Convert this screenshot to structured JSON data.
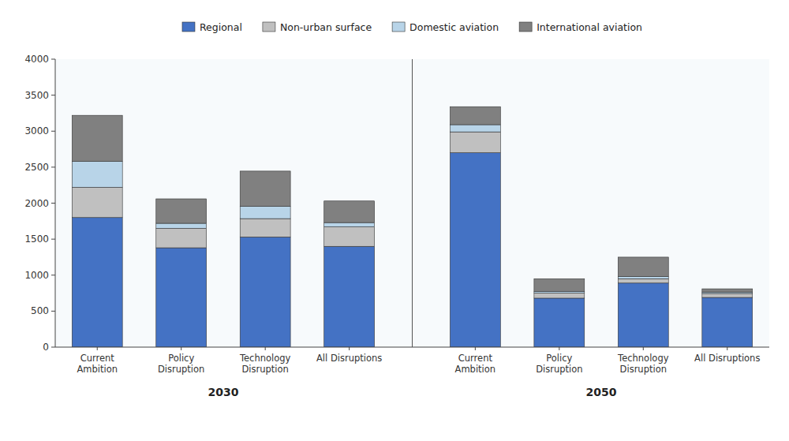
{
  "chart_data": {
    "type": "bar",
    "stacked": true,
    "grid": false,
    "legend": "top",
    "categories": [
      "Current\nAmbition",
      "Policy\nDisruption",
      "Technology\nDisruption",
      "All Disruptions",
      "Current\nAmbition",
      "Policy\nDisruption",
      "Technology\nDisruption",
      "All Disruptions"
    ],
    "groups": [
      "2030",
      "2050"
    ],
    "series": [
      {
        "name": "Regional",
        "color": "#4472C4",
        "values": [
          1800,
          1380,
          1530,
          1400,
          2700,
          680,
          890,
          690
        ]
      },
      {
        "name": "Non-urban surface",
        "color": "#C0C0C0",
        "values": [
          420,
          270,
          255,
          270,
          290,
          70,
          60,
          55
        ]
      },
      {
        "name": "Domestic aviation",
        "color": "#B8D4E8",
        "values": [
          360,
          70,
          170,
          60,
          100,
          25,
          30,
          20
        ]
      },
      {
        "name": "International aviation",
        "color": "#808080",
        "values": [
          640,
          340,
          490,
          300,
          250,
          175,
          270,
          45
        ]
      }
    ],
    "ylim": [
      0,
      4000
    ],
    "yticks": [
      0,
      500,
      1000,
      1500,
      2000,
      2500,
      3000,
      3500,
      4000
    ]
  }
}
